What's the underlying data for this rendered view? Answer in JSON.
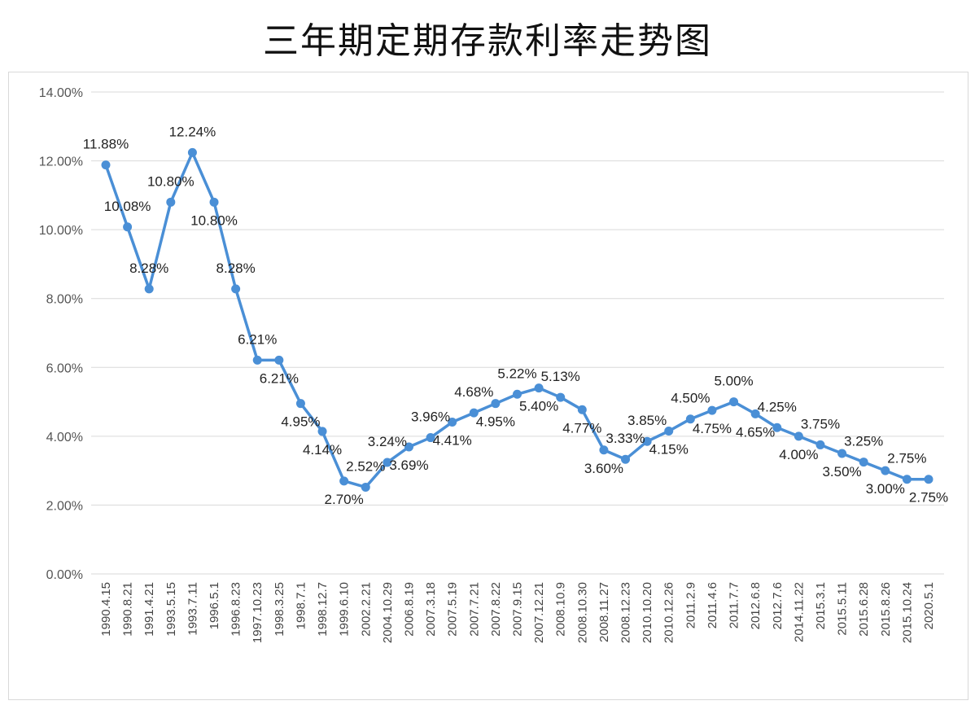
{
  "chart_data": {
    "type": "line",
    "title": "三年期定期存款利率走势图",
    "xlabel": "",
    "ylabel": "",
    "ylim": [
      0,
      14
    ],
    "yticks": [
      "0.00%",
      "2.00%",
      "4.00%",
      "6.00%",
      "8.00%",
      "10.00%",
      "12.00%",
      "14.00%"
    ],
    "grid": true,
    "legend": "none",
    "line_color": "#4a8fd6",
    "categories": [
      "1990.4.15",
      "1990.8.21",
      "1991.4.21",
      "1993.5.15",
      "1993.7.11",
      "1996.5.1",
      "1996.8.23",
      "1997.10.23",
      "1998.3.25",
      "1998.7.1",
      "1998.12.7",
      "1999.6.10",
      "2002.2.21",
      "2004.10.29",
      "2006.8.19",
      "2007.3.18",
      "2007.5.19",
      "2007.7.21",
      "2007.8.22",
      "2007.9.15",
      "2007.12.21",
      "2008.10.9",
      "2008.10.30",
      "2008.11.27",
      "2008.12.23",
      "2010.10.20",
      "2010.12.26",
      "2011.2.9",
      "2011.4.6",
      "2011.7.7",
      "2012.6.8",
      "2012.7.6",
      "2014.11.22",
      "2015.3.1",
      "2015.5.11",
      "2015.6.28",
      "2015.8.26",
      "2015.10.24",
      "2020.5.1"
    ],
    "values": [
      11.88,
      10.08,
      8.28,
      10.8,
      12.24,
      10.8,
      8.28,
      6.21,
      6.21,
      4.95,
      4.14,
      2.7,
      2.52,
      3.24,
      3.69,
      3.96,
      4.41,
      4.68,
      4.95,
      5.22,
      5.4,
      5.13,
      4.77,
      3.6,
      3.33,
      3.85,
      4.15,
      4.5,
      4.75,
      5.0,
      4.65,
      4.25,
      4.0,
      3.75,
      3.5,
      3.25,
      3.0,
      2.75,
      2.75
    ],
    "data_labels": [
      "11.88%",
      "10.08%",
      "8.28%",
      "10.80%",
      "12.24%",
      "10.80%",
      "8.28%",
      "6.21%",
      "6.21%",
      "4.95%",
      "4.14%",
      "2.70%",
      "2.52%",
      "3.24%",
      "3.69%",
      "3.96%",
      "4.41%",
      "4.68%",
      "4.95%",
      "5.22%",
      "5.40%",
      "5.13%",
      "4.77%",
      "3.60%",
      "3.33%",
      "3.85%",
      "4.15%",
      "4.50%",
      "4.75%",
      "5.00%",
      "4.65%",
      "4.25%",
      "4.00%",
      "3.75%",
      "3.50%",
      "3.25%",
      "3.00%",
      "2.75%",
      "2.75%"
    ]
  }
}
